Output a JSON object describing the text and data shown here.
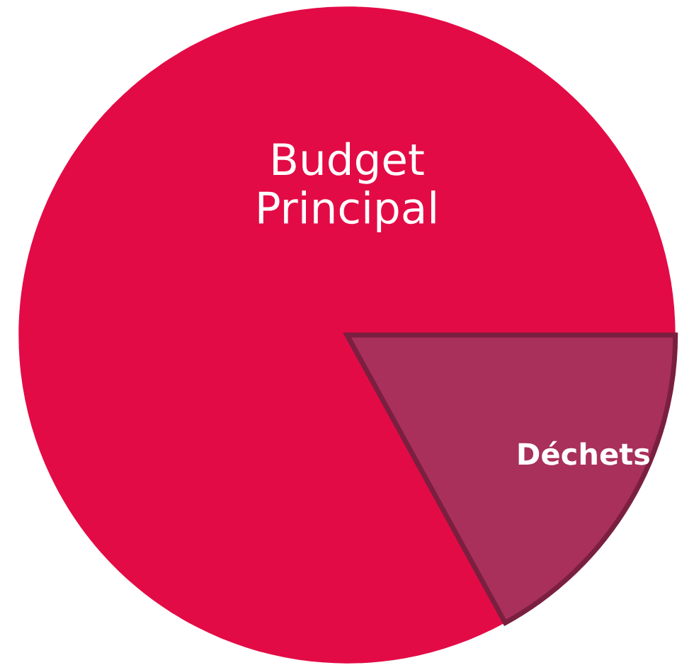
{
  "chart_data": {
    "type": "pie",
    "categories": [
      "Budget\nPrincipal",
      "Déchets"
    ],
    "values": [
      83,
      17
    ],
    "colors": [
      "#e30b45",
      "#a8305a"
    ]
  }
}
